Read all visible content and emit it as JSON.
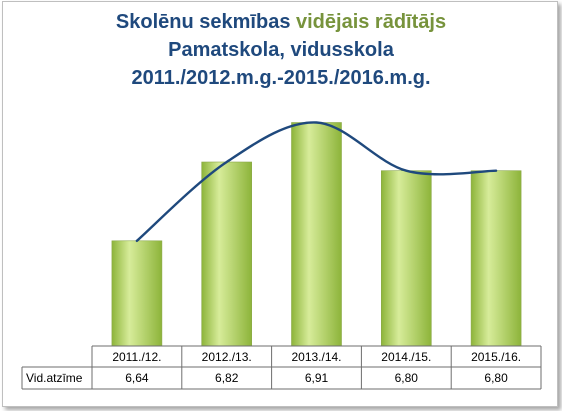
{
  "title": {
    "line1_part1": "Skolēnu sekmības ",
    "line1_part2": "vidējais rādītājs",
    "line2": "Pamatskola, vidusskola",
    "line3": "2011./2012.m.g.-2015./2016.m.g."
  },
  "colors": {
    "title": "#1f497d",
    "title_accent": "#77933c",
    "bar_light": "#d7ec9a",
    "bar_dark": "#8db43a",
    "trend_line": "#1f497d"
  },
  "chart_data": {
    "type": "bar",
    "title": "Skolēnu sekmības vidējais rādītājs Pamatskola, vidusskola 2011./2012.m.g.-2015./2016.m.g.",
    "categories": [
      "2011./12.",
      "2012./13.",
      "2013./14.",
      "2014./15.",
      "2015./16."
    ],
    "series": [
      {
        "name": "Vid.atzīme",
        "values": [
          6.64,
          6.82,
          6.91,
          6.8,
          6.8
        ]
      }
    ],
    "value_labels": [
      "6,64",
      "6,82",
      "6,91",
      "6,80",
      "6,80"
    ],
    "trendline": "smoothed",
    "data_table": true,
    "legend": "none",
    "grid": false,
    "ylim": [
      6.4,
      6.95
    ]
  }
}
